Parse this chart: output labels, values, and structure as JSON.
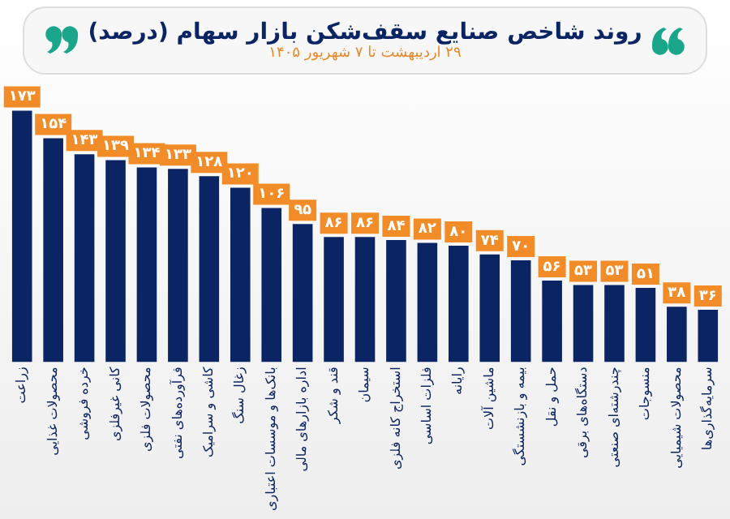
{
  "chart_data": {
    "type": "bar",
    "title": "روند شاخص صنایع سقف‌شکن بازار سهام (درصد)",
    "subtitle": "۲۹ اردیبهشت تا ۷ شهریور ۱۴۰۵",
    "categories": [
      "زراعت",
      "محصولات غذایی",
      "خرده فروشی",
      "کانی غیرفلزی",
      "محصولات فلزی",
      "فرآورده‌های نفتی",
      "کاشی و سرامیک",
      "زغال سنگ",
      "بانک‌ها و موسسات اعتباری",
      "اداره بازارهای مالی",
      "قند و شکر",
      "سیمان",
      "استخراج کانه فلزی",
      "فلزات اساسی",
      "رایانه",
      "ماشین آلات",
      "بیمه و بازنشستگی",
      "حمل و نقل",
      "دستگاه‌های برقی",
      "چندرشته‌ای صنعتی",
      "منسوجات",
      "محصولات شیمیایی",
      "سرمایه‌گذاری‌ها"
    ],
    "values": [
      173,
      154,
      143,
      139,
      134,
      133,
      128,
      120,
      106,
      95,
      86,
      86,
      84,
      82,
      80,
      74,
      70,
      56,
      53,
      53,
      51,
      38,
      36
    ],
    "value_labels": [
      "۱۷۳",
      "۱۵۴",
      "۱۴۳",
      "۱۳۹",
      "۱۳۴",
      "۱۳۳",
      "۱۲۸",
      "۱۲۰",
      "۱۰۶",
      "۹۵",
      "۸۶",
      "۸۶",
      "۸۴",
      "۸۲",
      "۸۰",
      "۷۴",
      "۷۰",
      "۵۶",
      "۵۳",
      "۵۳",
      "۵۱",
      "۳۸",
      "۳۶"
    ],
    "color": "#0b2463",
    "grid": false,
    "legend": false
  }
}
